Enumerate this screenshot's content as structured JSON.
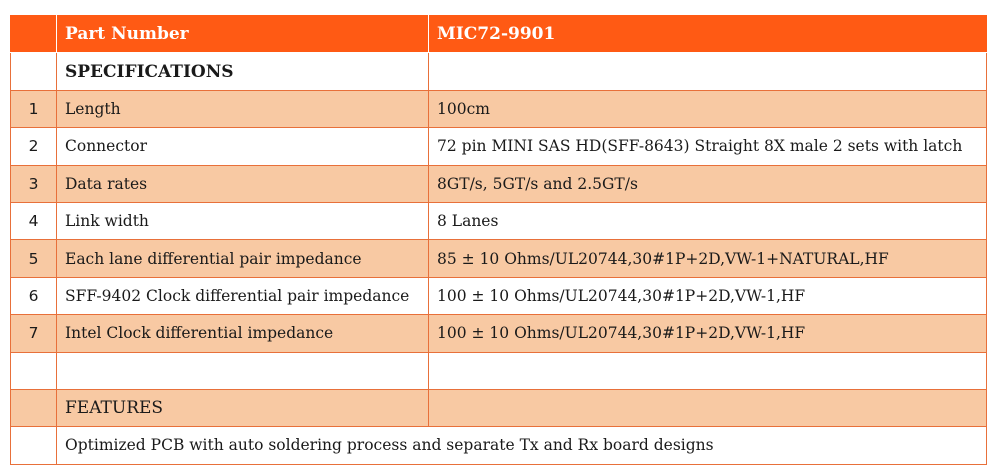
{
  "header": {
    "part_label": "Part Number",
    "part_value": "MIC72-9901"
  },
  "specifications_heading": "SPECIFICATIONS",
  "specs": [
    {
      "num": "1",
      "name": "Length",
      "value": "100cm"
    },
    {
      "num": "2",
      "name": "Connector",
      "value": "72 pin MINI SAS HD(SFF-8643) Straight 8X male 2 sets  with latch"
    },
    {
      "num": "3",
      "name": "Data rates",
      "value": "8GT/s, 5GT/s and 2.5GT/s"
    },
    {
      "num": "4",
      "name": "Link width",
      "value": "8 Lanes"
    },
    {
      "num": "5",
      "name": "Each lane differential pair impedance",
      "value": "85 ± 10 Ohms/UL20744,30#1P+2D,VW-1+NATURAL,HF"
    },
    {
      "num": "6",
      "name": "SFF-9402 Clock differential pair impedance",
      "value": "100 ± 10 Ohms/UL20744,30#1P+2D,VW-1,HF"
    },
    {
      "num": "7",
      "name": "Intel Clock differential impedance",
      "value": "100 ± 10 Ohms/UL20744,30#1P+2D,VW-1,HF"
    }
  ],
  "features_heading": "FEATURES",
  "features_text": "Optimized PCB with auto soldering process and separate Tx and Rx board designs",
  "colors": {
    "header_orange": "#ff5a14",
    "row_peach": "#f8c9a3",
    "border": "#e8703a"
  }
}
